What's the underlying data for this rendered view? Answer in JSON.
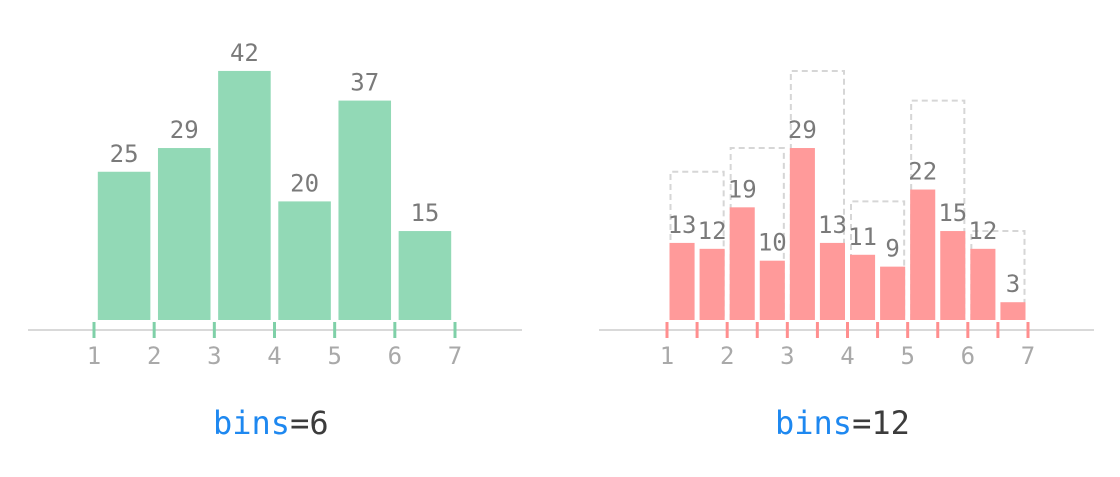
{
  "colors": {
    "green": "#92d9b6",
    "green_tick": "#7fd0a8",
    "red": "#ff9a9a",
    "red_tick": "#ff8f8f",
    "axis": "#d9d9d9",
    "outline": "#d6d6d6"
  },
  "chart_data": [
    {
      "type": "bar",
      "title": "",
      "bins": 6,
      "x_ticks": [
        "1",
        "2",
        "3",
        "4",
        "5",
        "6",
        "7"
      ],
      "xlim": [
        1,
        7
      ],
      "bin_edges": [
        1,
        2,
        3,
        4,
        5,
        6,
        7
      ],
      "values": [
        25,
        29,
        42,
        20,
        37,
        15
      ],
      "value_labels": [
        "25",
        "29",
        "42",
        "20",
        "37",
        "15"
      ],
      "caption": {
        "keyword": "bins",
        "rest": "=6"
      }
    },
    {
      "type": "bar",
      "title": "",
      "bins": 12,
      "x_ticks": [
        "1",
        "2",
        "3",
        "4",
        "5",
        "6",
        "7"
      ],
      "xlim": [
        1,
        7
      ],
      "bin_edges": [
        1,
        1.5,
        2,
        2.5,
        3,
        3.5,
        4,
        4.5,
        5,
        5.5,
        6,
        6.5,
        7
      ],
      "values": [
        13,
        12,
        19,
        10,
        29,
        13,
        11,
        9,
        22,
        15,
        12,
        3
      ],
      "value_labels": [
        "13",
        "12",
        "19",
        "10",
        "29",
        "13",
        "11",
        "9",
        "22",
        "15",
        "12",
        "3"
      ],
      "overlay_values": [
        25,
        29,
        42,
        20,
        37,
        15
      ],
      "caption": {
        "keyword": "bins",
        "rest": "=12"
      }
    }
  ]
}
